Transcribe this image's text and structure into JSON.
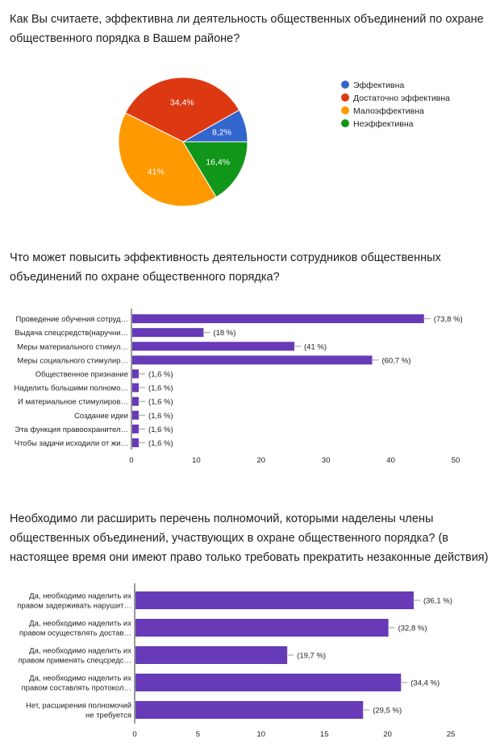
{
  "chart_data": [
    {
      "type": "pie",
      "title": "Как Вы считаете, эффективна ли деятельность общественных объединений по охране общественного порядка в Вашем районе?",
      "categories": [
        "Эффективна",
        "Достаточно эффективна",
        "Малоэффективна",
        "Неэффективна"
      ],
      "values": [
        8.2,
        34.4,
        41,
        16.4
      ],
      "labels": [
        "8,2%",
        "34,4%",
        "41%",
        "16,4%"
      ],
      "colors": [
        "#3366cc",
        "#dc3912",
        "#ff9900",
        "#109618"
      ],
      "legend": "right"
    },
    {
      "type": "bar",
      "title": "Что может повысить эффективность деятельности сотрудников общественных объединений по охране общественного порядка?",
      "categories": [
        "Проведение обучения сотруд…",
        "Выдача спецсредств(наручни…",
        "Меры материального стимул…",
        "Меры социального стимулир…",
        "Общественное признание",
        "Наделить большими полномо…",
        "И материальное стимулиров…",
        "Создание идеи",
        "Эта функция правоохранител…",
        "Чтобы задачи исходили от жи…"
      ],
      "values": [
        45,
        11,
        25,
        37,
        1,
        1,
        1,
        1,
        1,
        1
      ],
      "data_labels": [
        "(73,8 %)",
        "(18 %)",
        "(41 %)",
        "(60,7 %)",
        "(1,6 %)",
        "(1,6 %)",
        "(1,6 %)",
        "(1,6 %)",
        "(1,6 %)",
        "(1,6 %)"
      ],
      "xlim": [
        0,
        50
      ],
      "ticks": [
        0,
        10,
        20,
        30,
        40,
        50
      ],
      "color": "#673ab7"
    },
    {
      "type": "bar",
      "title": "Необходимо ли расширить перечень полномочий, которыми наделены члены общественных объединений, участвующих в охране общественного порядка? (в настоящее время они имеют право только требовать прекратить незаконные действия)",
      "categories": [
        [
          "Да, необходимо наделить их",
          "правом задерживать нарушит…"
        ],
        [
          "Да, необходимо наделить их",
          "правом осуществлять достав…"
        ],
        [
          "Да, необходимо наделить их",
          "правом применять спецсредс…"
        ],
        [
          "Да, необходимо наделить их",
          "правом составлять протокол…"
        ],
        [
          "Нет, расширения полномочий",
          "не требуется"
        ]
      ],
      "values": [
        22,
        20,
        12,
        21,
        18
      ],
      "data_labels": [
        "(36,1 %)",
        "(32,8 %)",
        "(19,7 %)",
        "(34,4 %)",
        "(29,5 %)"
      ],
      "xlim": [
        0,
        25
      ],
      "ticks": [
        0,
        5,
        10,
        15,
        20,
        25
      ],
      "color": "#673ab7"
    }
  ]
}
